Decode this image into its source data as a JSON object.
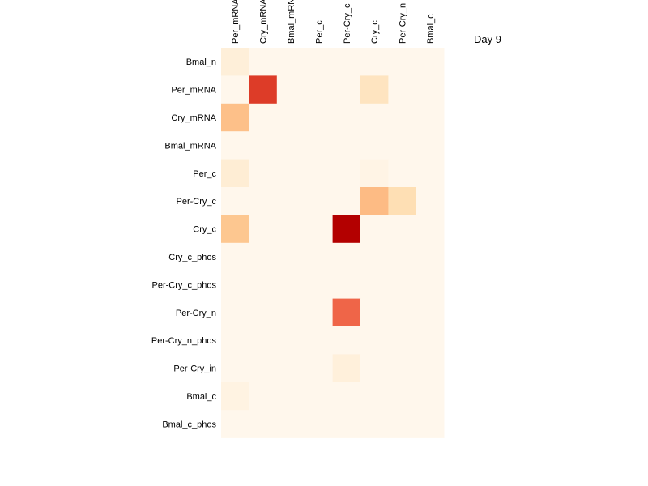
{
  "chart_data": {
    "type": "heatmap",
    "title": "Day 9",
    "columns": [
      "Per_mRNA",
      "Cry_mRNA",
      "Bmal_mRNA",
      "Per_c",
      "Per-Cry_c",
      "Cry_c",
      "Per-Cry_n",
      "Bmal_c"
    ],
    "rows": [
      "Bmal_n",
      "Per_mRNA",
      "Cry_mRNA",
      "Bmal_mRNA",
      "Per_c",
      "Per-Cry_c",
      "Cry_c",
      "Cry_c_phos",
      "Per-Cry_c_phos",
      "Per-Cry_n",
      "Per-Cry_n_phos",
      "Per-Cry_in",
      "Bmal_c",
      "Bmal_c_phos"
    ],
    "values": [
      [
        0.08,
        0,
        0,
        0,
        0,
        0,
        0,
        0
      ],
      [
        0,
        0.85,
        0,
        0,
        0,
        0.18,
        0,
        0
      ],
      [
        0.42,
        0,
        0,
        0,
        0,
        0,
        0,
        0
      ],
      [
        0,
        0,
        0,
        0,
        0,
        0,
        0,
        0
      ],
      [
        0.1,
        0,
        0,
        0,
        0,
        0.03,
        0,
        0
      ],
      [
        0,
        0,
        0,
        0,
        0,
        0.45,
        0.22,
        0
      ],
      [
        0.38,
        0,
        0,
        0,
        1.0,
        0,
        0,
        0
      ],
      [
        0,
        0,
        0,
        0,
        0,
        0,
        0,
        0
      ],
      [
        0,
        0,
        0,
        0,
        0,
        0,
        0,
        0
      ],
      [
        0,
        0,
        0,
        0,
        0.75,
        0,
        0,
        0
      ],
      [
        0,
        0,
        0,
        0,
        0,
        0,
        0,
        0
      ],
      [
        0,
        0,
        0,
        0,
        0.07,
        0,
        0,
        0
      ],
      [
        0.04,
        0,
        0,
        0,
        0,
        0,
        0,
        0
      ],
      [
        0,
        0,
        0,
        0,
        0,
        0,
        0,
        0
      ]
    ],
    "colormap": "OrRd",
    "vmin": 0,
    "vmax": 1,
    "grid": false
  }
}
